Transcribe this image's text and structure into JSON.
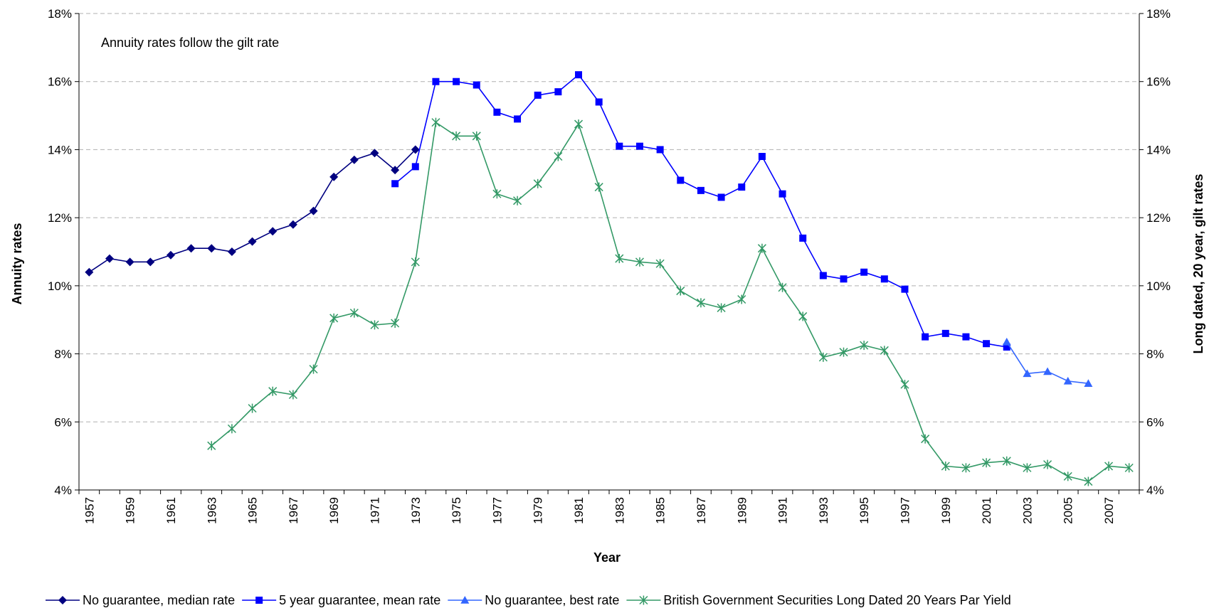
{
  "chart_data": {
    "type": "line",
    "annotation": "Annuity rates follow the gilt rate",
    "xlabel": "Year",
    "ylabel_left": "Annuity rates",
    "ylabel_right": "Long dated, 20 year, gilt rates",
    "x_range": [
      1957,
      2008
    ],
    "x_tick_labels": [
      "1957",
      "1959",
      "1961",
      "1963",
      "1965",
      "1967",
      "1969",
      "1971",
      "1973",
      "1975",
      "1977",
      "1979",
      "1981",
      "1983",
      "1985",
      "1987",
      "1989",
      "1991",
      "1993",
      "1995",
      "1997",
      "1999",
      "2001",
      "2003",
      "2005",
      "2007"
    ],
    "ylim_left": [
      4,
      18
    ],
    "ylim_right": [
      4,
      18
    ],
    "y_tick_labels": [
      "4%",
      "6%",
      "8%",
      "10%",
      "12%",
      "14%",
      "16%",
      "18%"
    ],
    "y_ticks": [
      4,
      6,
      8,
      10,
      12,
      14,
      16,
      18
    ],
    "grid": "horizontal dashed",
    "legend_position": "bottom",
    "series": [
      {
        "name": "No guarantee, median rate",
        "marker": "diamond",
        "color": "#000080",
        "x": [
          1957,
          1958,
          1959,
          1960,
          1961,
          1962,
          1963,
          1964,
          1965,
          1966,
          1967,
          1968,
          1969,
          1970,
          1971,
          1972,
          1973
        ],
        "y": [
          10.4,
          10.8,
          10.7,
          10.7,
          10.9,
          11.1,
          11.1,
          11.0,
          11.3,
          11.6,
          11.8,
          12.2,
          13.2,
          13.7,
          13.9,
          13.4,
          14.0
        ]
      },
      {
        "name": "5 year guarantee, mean rate",
        "marker": "square",
        "color": "#0000FF",
        "x": [
          1972,
          1973,
          1974,
          1975,
          1976,
          1977,
          1978,
          1979,
          1980,
          1981,
          1982,
          1983,
          1984,
          1985,
          1986,
          1987,
          1988,
          1989,
          1990,
          1991,
          1992,
          1993,
          1994,
          1995,
          1996,
          1997,
          1998,
          1999,
          2000,
          2001,
          2002
        ],
        "y": [
          13.0,
          13.5,
          16.0,
          16.0,
          15.9,
          15.1,
          14.9,
          15.6,
          15.7,
          16.2,
          15.4,
          14.1,
          14.1,
          14.0,
          13.1,
          12.8,
          12.6,
          12.9,
          13.8,
          12.7,
          11.4,
          10.3,
          10.2,
          10.4,
          10.2,
          9.9,
          8.5,
          8.6,
          8.5,
          8.3,
          8.2
        ]
      },
      {
        "name": "No guarantee, best rate",
        "marker": "triangle",
        "color": "#3366FF",
        "x": [
          2002,
          2003,
          2004,
          2005,
          2006
        ],
        "y": [
          8.35,
          7.42,
          7.48,
          7.2,
          7.13
        ]
      },
      {
        "name": "British Government Securities Long Dated 20 Years Par Yield",
        "marker": "star",
        "color": "#339966",
        "x": [
          1963,
          1964,
          1965,
          1966,
          1967,
          1968,
          1969,
          1970,
          1971,
          1972,
          1973,
          1974,
          1975,
          1976,
          1977,
          1978,
          1979,
          1980,
          1981,
          1982,
          1983,
          1984,
          1985,
          1986,
          1987,
          1988,
          1989,
          1990,
          1991,
          1992,
          1993,
          1994,
          1995,
          1996,
          1997,
          1998,
          1999,
          2000,
          2001,
          2002,
          2003,
          2004,
          2005,
          2006,
          2007,
          2008
        ],
        "y": [
          5.3,
          5.8,
          6.4,
          6.9,
          6.8,
          7.55,
          9.05,
          9.2,
          8.85,
          8.9,
          10.7,
          14.8,
          14.4,
          14.4,
          12.7,
          12.5,
          13.0,
          13.8,
          14.75,
          12.9,
          10.8,
          10.7,
          10.65,
          9.85,
          9.5,
          9.35,
          9.6,
          11.1,
          9.95,
          9.1,
          7.9,
          8.05,
          8.25,
          8.1,
          7.1,
          5.5,
          4.7,
          4.65,
          4.8,
          4.85,
          4.65,
          4.75,
          4.4,
          4.25,
          4.7,
          4.65
        ]
      }
    ]
  }
}
